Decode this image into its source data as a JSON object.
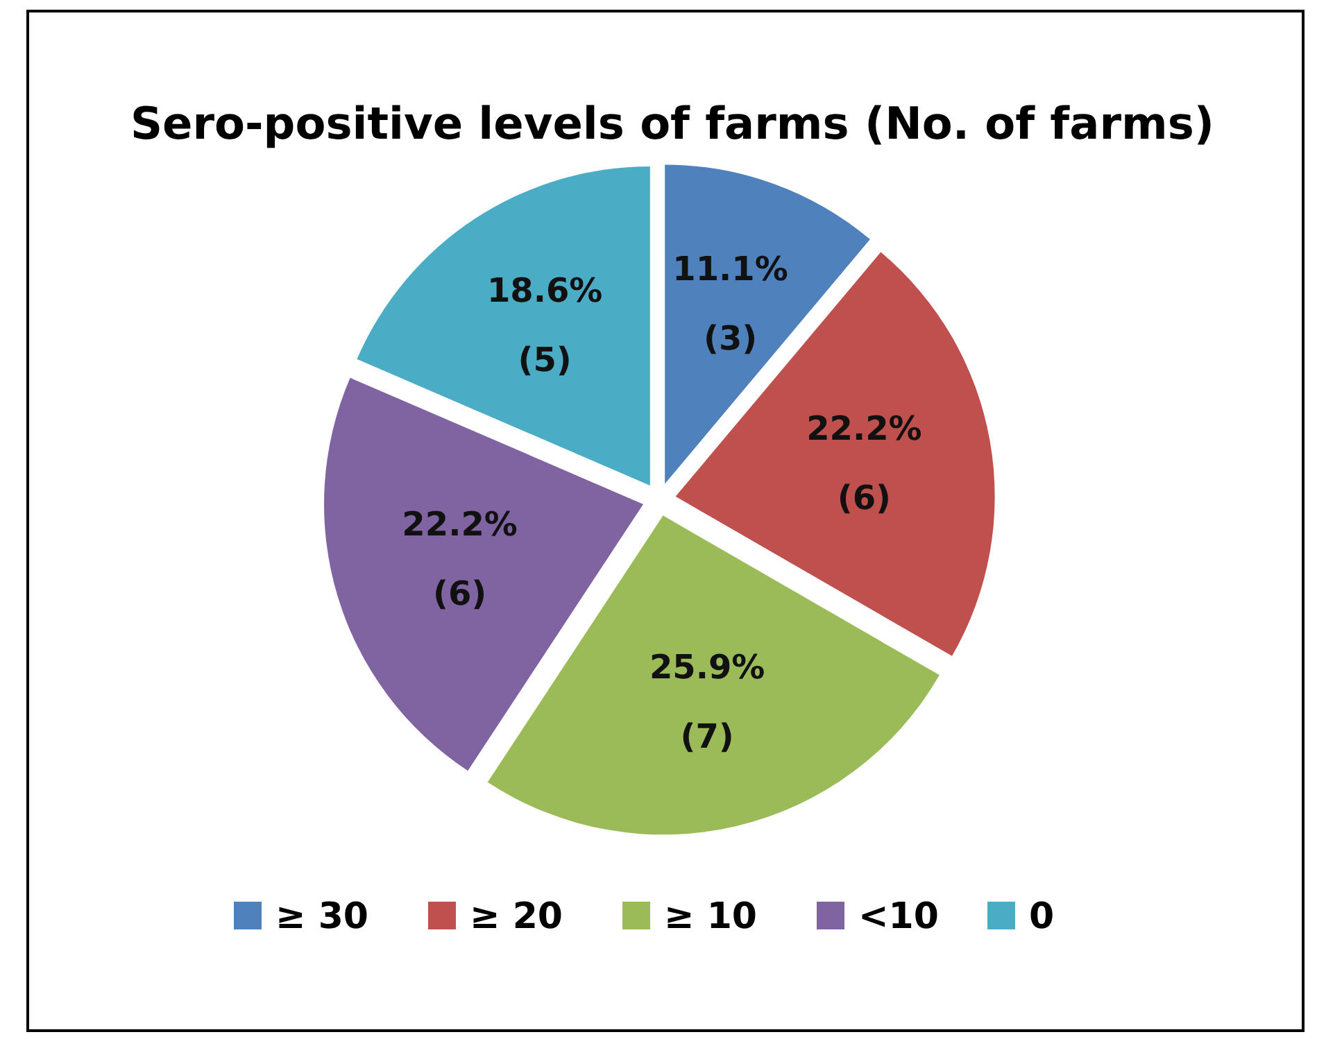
{
  "chart_data": {
    "type": "pie",
    "title": "Sero-positive levels of farms (No. of farms)",
    "categories": [
      "≥ 30",
      "≥ 20",
      "≥ 10",
      "<10",
      "0"
    ],
    "values": [
      3,
      6,
      7,
      6,
      5
    ],
    "colors": [
      "#4f81bd",
      "#c0504d",
      "#9bbb59",
      "#8064a2",
      "#4bacc6"
    ],
    "value_labels": [
      "11.1%\n(3)",
      "22.2%\n(6)",
      "25.9%\n(7)",
      "22.2%\n(6)",
      "18.6%\n(5)"
    ],
    "legend": "bottom"
  }
}
